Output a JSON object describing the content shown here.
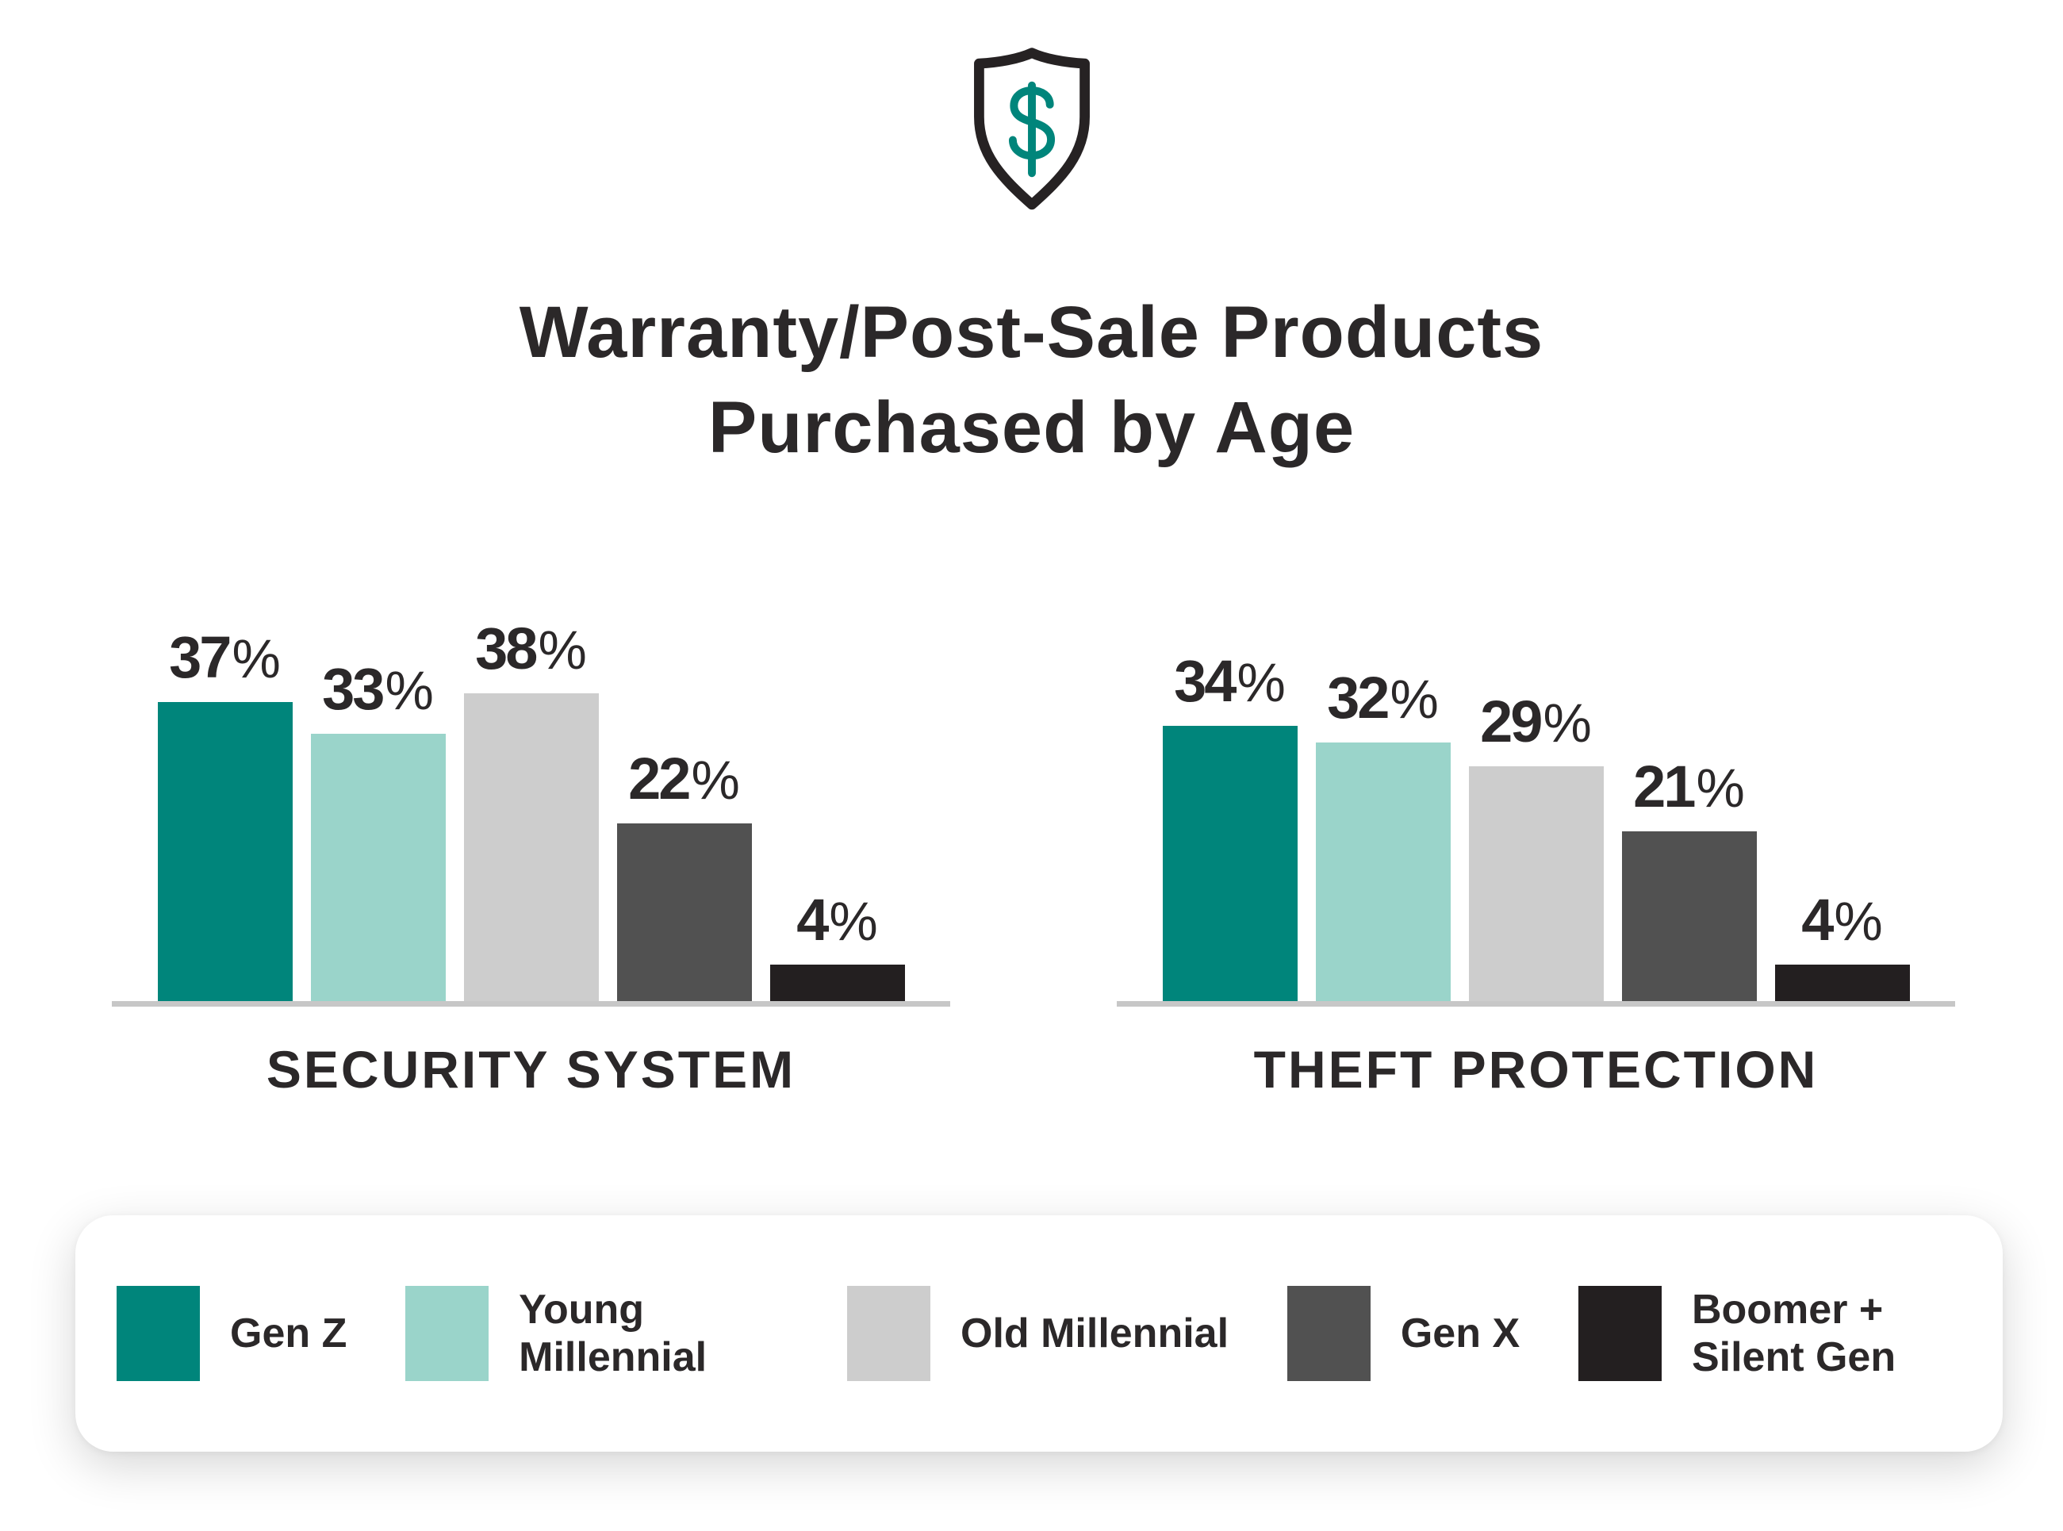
{
  "header": {
    "icon": "shield-dollar",
    "title_line1": "Warranty/Post-Sale Products",
    "title_line2": "Purchased by Age"
  },
  "chart_data": [
    {
      "type": "bar",
      "title": "SECURITY SYSTEM",
      "categories": [
        "Gen Z",
        "Young Millennial",
        "Old Millennial",
        "Gen X",
        "Boomer + Silent Gen"
      ],
      "values": [
        37,
        33,
        38,
        22,
        4
      ],
      "unit": "%",
      "value_labels": "above-bars",
      "ylim": [
        0,
        40
      ],
      "grid": false,
      "axis": "baseline-only"
    },
    {
      "type": "bar",
      "title": "THEFT PROTECTION",
      "categories": [
        "Gen Z",
        "Young Millennial",
        "Old Millennial",
        "Gen X",
        "Boomer + Silent Gen"
      ],
      "values": [
        34,
        32,
        29,
        21,
        4
      ],
      "unit": "%",
      "value_labels": "above-bars",
      "ylim": [
        0,
        40
      ],
      "grid": false,
      "axis": "baseline-only"
    }
  ],
  "legend": {
    "position": "bottom-card",
    "items": [
      {
        "label": "Gen Z",
        "color": "#00857B"
      },
      {
        "label": "Young Millennial",
        "color": "#9AD4CA"
      },
      {
        "label": "Old Millennial",
        "color": "#CDCDCD"
      },
      {
        "label": "Gen X",
        "color": "#515151"
      },
      {
        "label": "Boomer + Silent Gen",
        "color": "#231F20"
      }
    ]
  },
  "colors": {
    "background": "#FFFFFF",
    "text": "#2B2829",
    "baseline": "#C7C7C7",
    "shield_outline": "#262223",
    "dollar_sign": "#00857B",
    "legend_card": "#FFFFFF"
  }
}
